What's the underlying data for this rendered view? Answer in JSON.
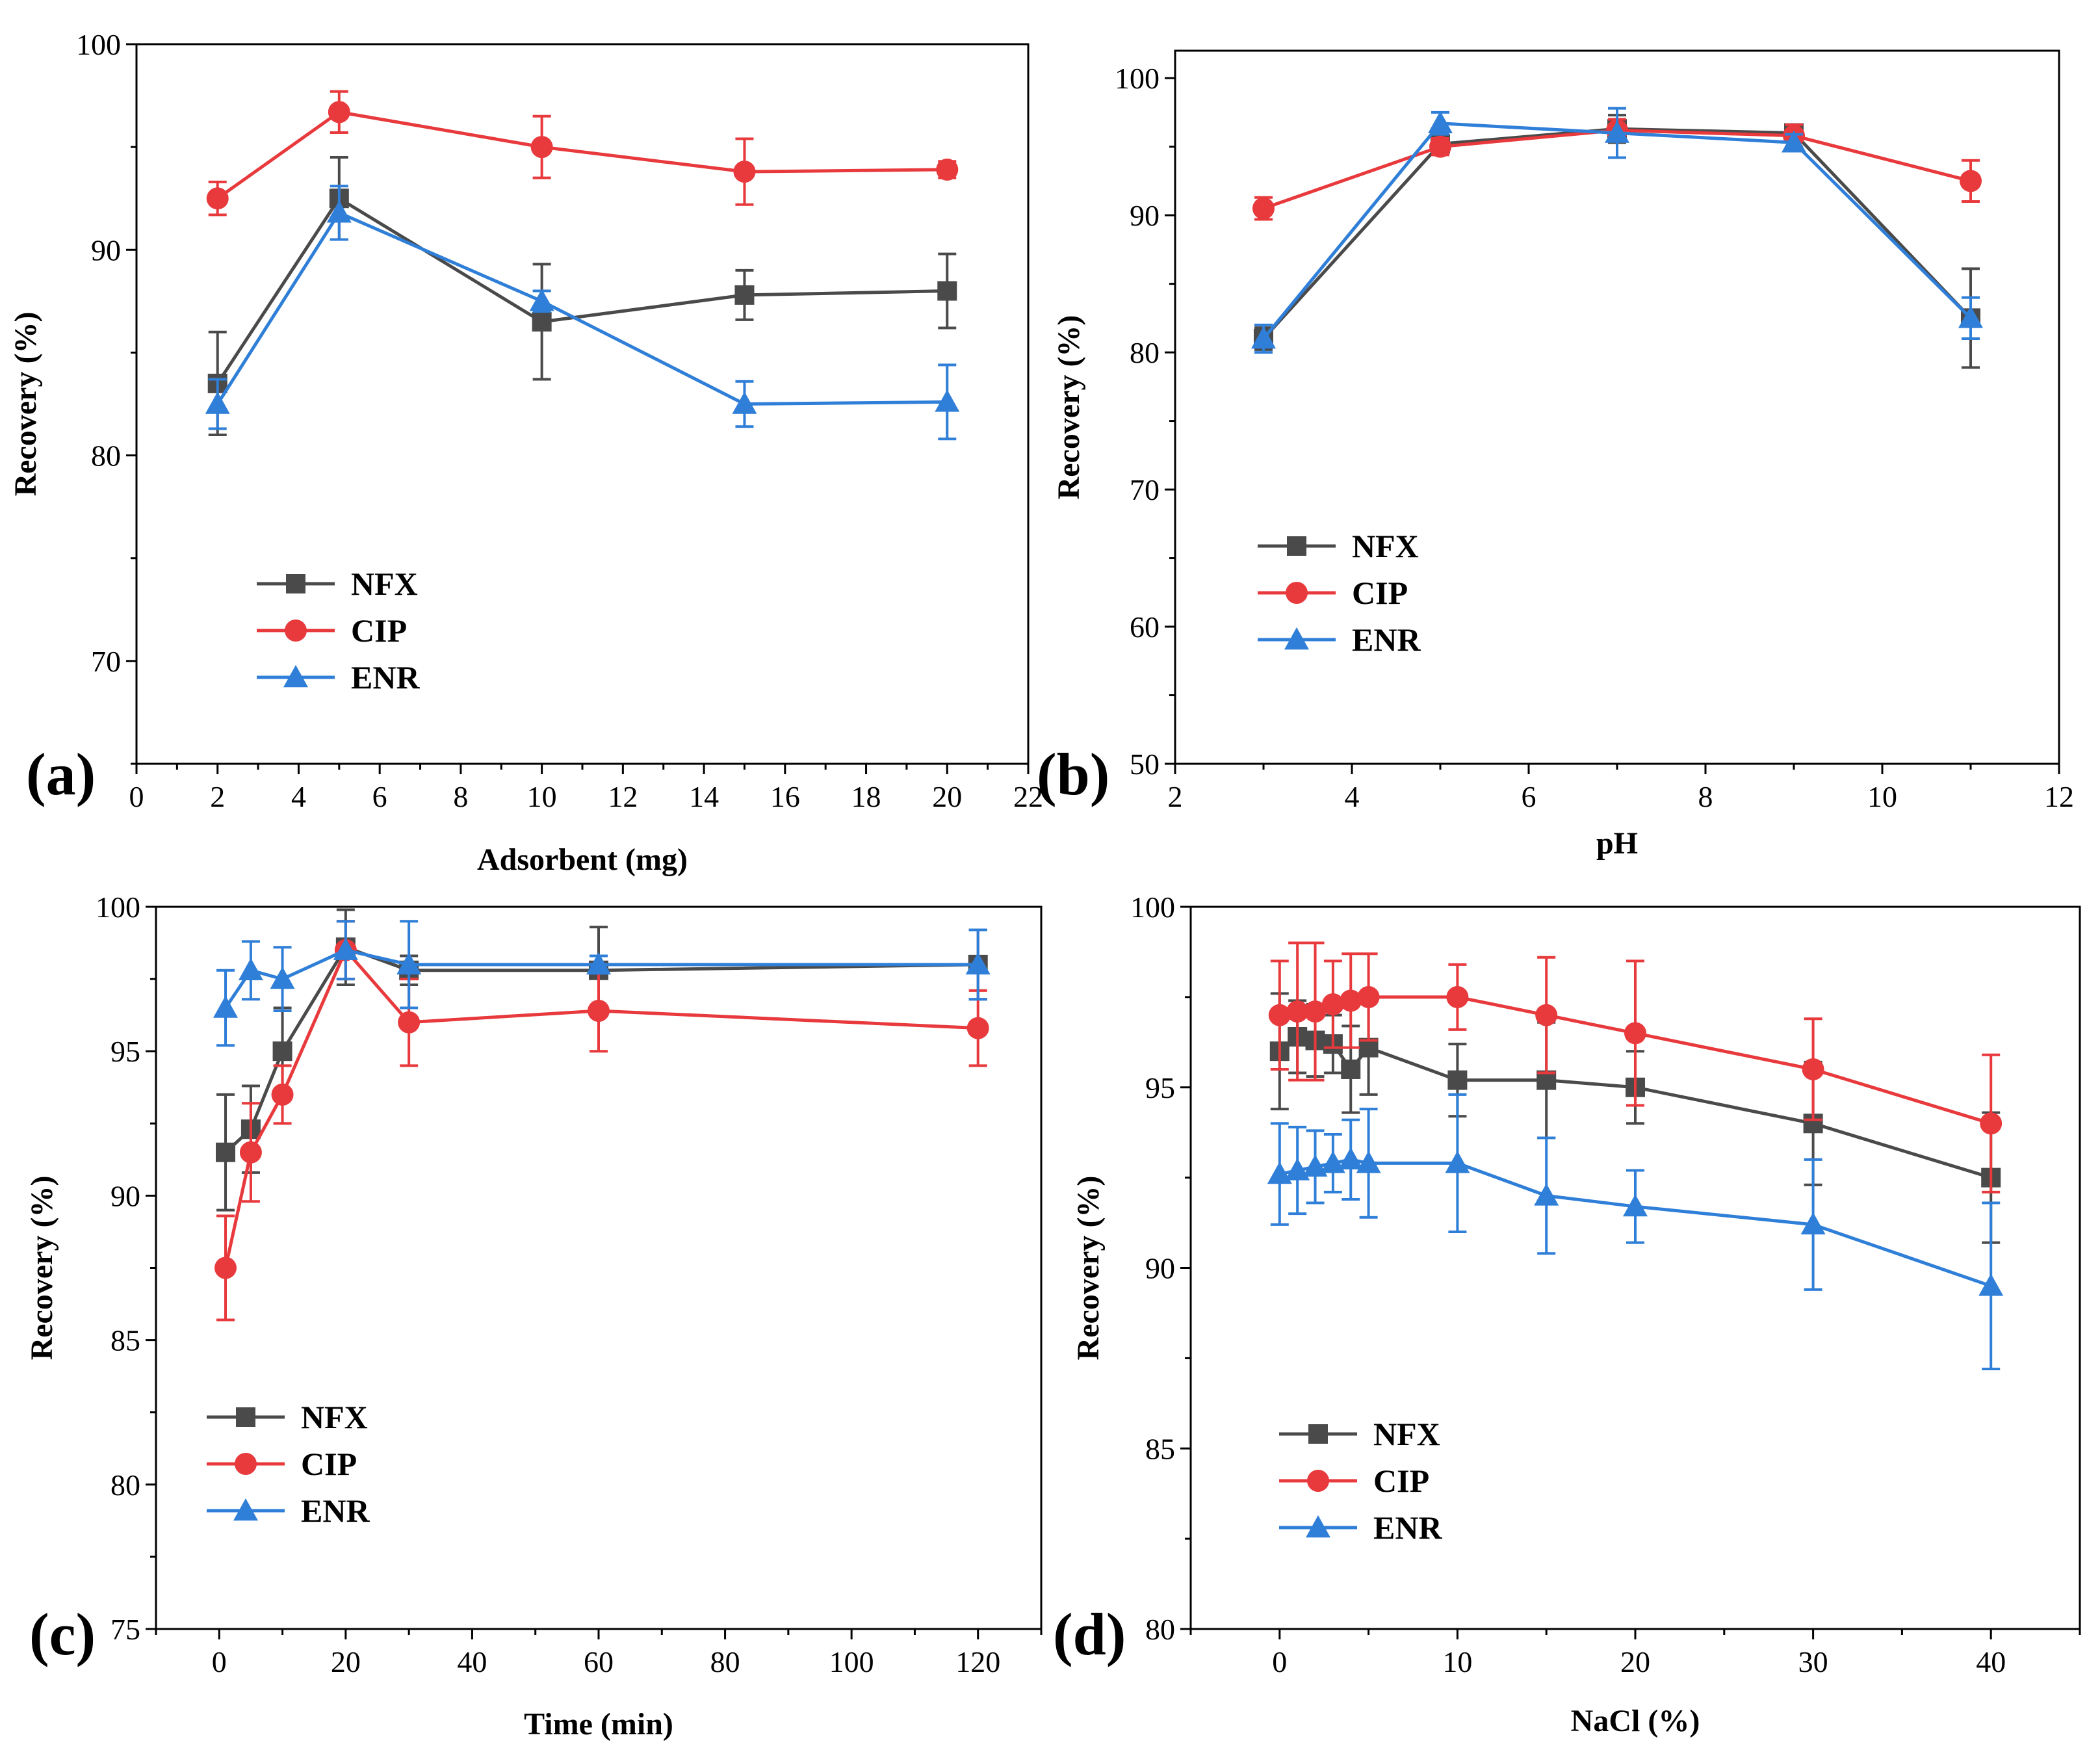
{
  "colors": {
    "NFX": "#4a4a4a",
    "CIP": "#e8393c",
    "ENR": "#2f7fd8"
  },
  "chart_data": [
    {
      "id": "a",
      "type": "line",
      "panel_label": "(a)",
      "xlabel": "Adsorbent (mg)",
      "ylabel": "Recovery (%)",
      "xlim": [
        0,
        22
      ],
      "ylim": [
        65,
        100
      ],
      "xticks": [
        0,
        2,
        4,
        6,
        8,
        10,
        12,
        14,
        16,
        18,
        20,
        22
      ],
      "yticks": [
        70,
        80,
        90,
        100
      ],
      "legend_position": "lower-left",
      "series": [
        {
          "name": "NFX",
          "marker": "square",
          "x": [
            2,
            5,
            10,
            15,
            20
          ],
          "y": [
            83.5,
            92.5,
            86.5,
            87.8,
            88.0
          ],
          "err": [
            2.5,
            2.0,
            2.8,
            1.2,
            1.8
          ]
        },
        {
          "name": "CIP",
          "marker": "circle",
          "x": [
            2,
            5,
            10,
            15,
            20
          ],
          "y": [
            92.5,
            96.7,
            95.0,
            93.8,
            93.9
          ],
          "err": [
            0.8,
            1.0,
            1.5,
            1.6,
            0.4
          ]
        },
        {
          "name": "ENR",
          "marker": "triangle",
          "x": [
            2,
            5,
            10,
            15,
            20
          ],
          "y": [
            82.5,
            91.8,
            87.5,
            82.5,
            82.6
          ],
          "err": [
            1.2,
            1.3,
            0.5,
            1.1,
            1.8
          ]
        }
      ]
    },
    {
      "id": "b",
      "type": "line",
      "panel_label": "(b)",
      "xlabel": "pH",
      "ylabel": "Recovery (%)",
      "xlim": [
        2,
        12
      ],
      "ylim": [
        50,
        102
      ],
      "xticks": [
        2,
        4,
        6,
        8,
        10,
        12
      ],
      "yticks": [
        50,
        60,
        70,
        80,
        90,
        100
      ],
      "legend_position": "middle-left",
      "series": [
        {
          "name": "NFX",
          "marker": "square",
          "x": [
            3,
            5,
            7,
            9,
            11
          ],
          "y": [
            81.0,
            95.2,
            96.3,
            96.0,
            82.5
          ],
          "err": [
            0.8,
            0.6,
            1.0,
            0.5,
            3.6
          ]
        },
        {
          "name": "CIP",
          "marker": "circle",
          "x": [
            3,
            5,
            7,
            9,
            11
          ],
          "y": [
            90.5,
            95.0,
            96.2,
            95.8,
            92.5
          ],
          "err": [
            0.8,
            0.6,
            0.8,
            0.8,
            1.5
          ]
        },
        {
          "name": "ENR",
          "marker": "triangle",
          "x": [
            3,
            5,
            7,
            9,
            11
          ],
          "y": [
            81.0,
            96.7,
            96.0,
            95.3,
            82.5
          ],
          "err": [
            1.0,
            0.8,
            1.8,
            0.6,
            1.5
          ]
        }
      ]
    },
    {
      "id": "c",
      "type": "line",
      "panel_label": "(c)",
      "xlabel": "Time (min)",
      "ylabel": "Recovery (%)",
      "xlim": [
        -10,
        130
      ],
      "ylim": [
        75,
        100
      ],
      "xticks": [
        0,
        20,
        40,
        60,
        80,
        100,
        120
      ],
      "yticks": [
        75,
        80,
        85,
        90,
        95,
        100
      ],
      "legend_position": "lower-left",
      "series": [
        {
          "name": "NFX",
          "marker": "square",
          "x": [
            1,
            5,
            10,
            20,
            30,
            60,
            120
          ],
          "y": [
            91.5,
            92.3,
            95.0,
            98.6,
            97.8,
            97.8,
            98.0
          ],
          "err": [
            2.0,
            1.5,
            1.5,
            1.3,
            0.5,
            1.5,
            1.2
          ]
        },
        {
          "name": "CIP",
          "marker": "circle",
          "x": [
            1,
            5,
            10,
            20,
            30,
            60,
            120
          ],
          "y": [
            87.5,
            91.5,
            93.5,
            98.5,
            96.0,
            96.4,
            95.8
          ],
          "err": [
            1.8,
            1.7,
            1.0,
            1.0,
            1.5,
            1.4,
            1.3
          ]
        },
        {
          "name": "ENR",
          "marker": "triangle",
          "x": [
            1,
            5,
            10,
            20,
            30,
            60,
            120
          ],
          "y": [
            96.5,
            97.8,
            97.5,
            98.5,
            98.0,
            98.0,
            98.0
          ],
          "err": [
            1.3,
            1.0,
            1.1,
            1.0,
            1.5,
            0.3,
            1.2
          ]
        }
      ]
    },
    {
      "id": "d",
      "type": "line",
      "panel_label": "(d)",
      "xlabel": "NaCl (%)",
      "ylabel": "Recovery (%)",
      "xlim": [
        -5,
        45
      ],
      "ylim": [
        80,
        100
      ],
      "xticks": [
        0,
        10,
        20,
        30,
        40
      ],
      "yticks": [
        80,
        85,
        90,
        95,
        100
      ],
      "legend_position": "lower-left",
      "series": [
        {
          "name": "NFX",
          "marker": "square",
          "x": [
            0,
            1,
            2,
            3,
            4,
            5,
            10,
            15,
            20,
            30,
            40
          ],
          "y": [
            96.0,
            96.4,
            96.3,
            96.2,
            95.5,
            96.1,
            95.2,
            95.2,
            95.0,
            94.0,
            92.5
          ],
          "err": [
            1.6,
            1.0,
            1.0,
            0.8,
            1.2,
            1.3,
            1.0,
            1.6,
            1.0,
            1.7,
            1.8
          ]
        },
        {
          "name": "CIP",
          "marker": "circle",
          "x": [
            0,
            1,
            2,
            3,
            4,
            5,
            10,
            15,
            20,
            30,
            40
          ],
          "y": [
            97.0,
            97.1,
            97.1,
            97.3,
            97.4,
            97.5,
            97.5,
            97.0,
            96.5,
            95.5,
            94.0
          ],
          "err": [
            1.5,
            1.9,
            1.9,
            1.2,
            1.3,
            1.2,
            0.9,
            1.6,
            2.0,
            1.4,
            1.9
          ]
        },
        {
          "name": "ENR",
          "marker": "triangle",
          "x": [
            0,
            1,
            2,
            3,
            4,
            5,
            10,
            15,
            20,
            30,
            40
          ],
          "y": [
            92.6,
            92.7,
            92.8,
            92.9,
            93.0,
            92.9,
            92.9,
            92.0,
            91.7,
            91.2,
            89.5
          ],
          "err": [
            1.4,
            1.2,
            1.0,
            0.8,
            1.1,
            1.5,
            1.9,
            1.6,
            1.0,
            1.8,
            2.3
          ]
        }
      ]
    }
  ]
}
